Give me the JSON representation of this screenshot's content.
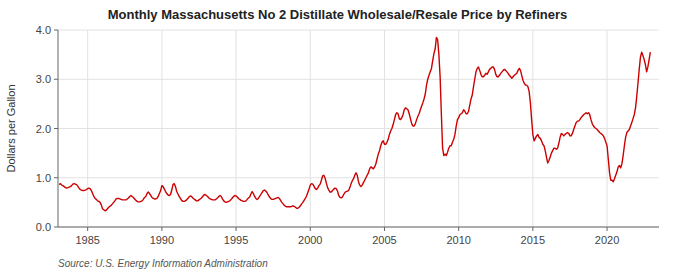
{
  "chart_data": {
    "type": "line",
    "title": "Monthly Massachusetts No 2 Distillate Wholesale/Resale Price by Refiners",
    "ylabel": "Dollars per Gallon",
    "source": "Source: U.S. Energy Information Administration",
    "color": "#cc0000",
    "line_style": "solid",
    "grid": true,
    "xlim": [
      1983.0,
      2023.5
    ],
    "ylim": [
      0.0,
      4.0
    ],
    "xticks": [
      1985,
      1990,
      1995,
      2000,
      2005,
      2010,
      2015,
      2020
    ],
    "yticks": [
      {
        "value": 0.0,
        "label": "0.0"
      },
      {
        "value": 1.0,
        "label": "1.0"
      },
      {
        "value": 2.0,
        "label": "2.0"
      },
      {
        "value": 3.0,
        "label": "3.0"
      },
      {
        "value": 4.0,
        "label": "4.0"
      }
    ],
    "x": [
      1983.083,
      1983.167,
      1983.25,
      1983.333,
      1983.417,
      1983.5,
      1983.583,
      1983.667,
      1983.75,
      1983.833,
      1983.917,
      1984.0,
      1984.083,
      1984.167,
      1984.25,
      1984.333,
      1984.417,
      1984.5,
      1984.583,
      1984.667,
      1984.75,
      1984.833,
      1984.917,
      1985.0,
      1985.083,
      1985.167,
      1985.25,
      1985.333,
      1985.417,
      1985.5,
      1985.583,
      1985.667,
      1985.75,
      1985.833,
      1985.917,
      1986.0,
      1986.083,
      1986.167,
      1986.25,
      1986.333,
      1986.417,
      1986.5,
      1986.583,
      1986.667,
      1986.75,
      1986.833,
      1986.917,
      1987.0,
      1987.083,
      1987.167,
      1987.25,
      1987.333,
      1987.417,
      1987.5,
      1987.583,
      1987.667,
      1987.75,
      1987.833,
      1987.917,
      1988.0,
      1988.083,
      1988.167,
      1988.25,
      1988.333,
      1988.417,
      1988.5,
      1988.583,
      1988.667,
      1988.75,
      1988.833,
      1988.917,
      1989.0,
      1989.083,
      1989.167,
      1989.25,
      1989.333,
      1989.417,
      1989.5,
      1989.583,
      1989.667,
      1989.75,
      1989.833,
      1989.917,
      1990.0,
      1990.083,
      1990.167,
      1990.25,
      1990.333,
      1990.417,
      1990.5,
      1990.583,
      1990.667,
      1990.75,
      1990.833,
      1990.917,
      1991.0,
      1991.083,
      1991.167,
      1991.25,
      1991.333,
      1991.417,
      1991.5,
      1991.583,
      1991.667,
      1991.75,
      1991.833,
      1991.917,
      1992.0,
      1992.083,
      1992.167,
      1992.25,
      1992.333,
      1992.417,
      1992.5,
      1992.583,
      1992.667,
      1992.75,
      1992.833,
      1992.917,
      1993.0,
      1993.083,
      1993.167,
      1993.25,
      1993.333,
      1993.417,
      1993.5,
      1993.583,
      1993.667,
      1993.75,
      1993.833,
      1993.917,
      1994.0,
      1994.083,
      1994.167,
      1994.25,
      1994.333,
      1994.417,
      1994.5,
      1994.583,
      1994.667,
      1994.75,
      1994.833,
      1994.917,
      1995.0,
      1995.083,
      1995.167,
      1995.25,
      1995.333,
      1995.417,
      1995.5,
      1995.583,
      1995.667,
      1995.75,
      1995.833,
      1995.917,
      1996.0,
      1996.083,
      1996.167,
      1996.25,
      1996.333,
      1996.417,
      1996.5,
      1996.583,
      1996.667,
      1996.75,
      1996.833,
      1996.917,
      1997.0,
      1997.083,
      1997.167,
      1997.25,
      1997.333,
      1997.417,
      1997.5,
      1997.583,
      1997.667,
      1997.75,
      1997.833,
      1997.917,
      1998.0,
      1998.083,
      1998.167,
      1998.25,
      1998.333,
      1998.417,
      1998.5,
      1998.583,
      1998.667,
      1998.75,
      1998.833,
      1998.917,
      1999.0,
      1999.083,
      1999.167,
      1999.25,
      1999.333,
      1999.417,
      1999.5,
      1999.583,
      1999.667,
      1999.75,
      1999.833,
      1999.917,
      2000.0,
      2000.083,
      2000.167,
      2000.25,
      2000.333,
      2000.417,
      2000.5,
      2000.583,
      2000.667,
      2000.75,
      2000.833,
      2000.917,
      2001.0,
      2001.083,
      2001.167,
      2001.25,
      2001.333,
      2001.417,
      2001.5,
      2001.583,
      2001.667,
      2001.75,
      2001.833,
      2001.917,
      2002.0,
      2002.083,
      2002.167,
      2002.25,
      2002.333,
      2002.417,
      2002.5,
      2002.583,
      2002.667,
      2002.75,
      2002.833,
      2002.917,
      2003.0,
      2003.083,
      2003.167,
      2003.25,
      2003.333,
      2003.417,
      2003.5,
      2003.583,
      2003.667,
      2003.75,
      2003.833,
      2003.917,
      2004.0,
      2004.083,
      2004.167,
      2004.25,
      2004.333,
      2004.417,
      2004.5,
      2004.583,
      2004.667,
      2004.75,
      2004.833,
      2004.917,
      2005.0,
      2005.083,
      2005.167,
      2005.25,
      2005.333,
      2005.417,
      2005.5,
      2005.583,
      2005.667,
      2005.75,
      2005.833,
      2005.917,
      2006.0,
      2006.083,
      2006.167,
      2006.25,
      2006.333,
      2006.417,
      2006.5,
      2006.583,
      2006.667,
      2006.75,
      2006.833,
      2006.917,
      2007.0,
      2007.083,
      2007.167,
      2007.25,
      2007.333,
      2007.417,
      2007.5,
      2007.583,
      2007.667,
      2007.75,
      2007.833,
      2007.917,
      2008.0,
      2008.083,
      2008.167,
      2008.25,
      2008.333,
      2008.417,
      2008.5,
      2008.583,
      2008.667,
      2008.75,
      2008.833,
      2008.917,
      2009.0,
      2009.083,
      2009.167,
      2009.25,
      2009.333,
      2009.417,
      2009.5,
      2009.583,
      2009.667,
      2009.75,
      2009.833,
      2009.917,
      2010.0,
      2010.083,
      2010.167,
      2010.25,
      2010.333,
      2010.417,
      2010.5,
      2010.583,
      2010.667,
      2010.75,
      2010.833,
      2010.917,
      2011.0,
      2011.083,
      2011.167,
      2011.25,
      2011.333,
      2011.417,
      2011.5,
      2011.583,
      2011.667,
      2011.75,
      2011.833,
      2011.917,
      2012.0,
      2012.083,
      2012.167,
      2012.25,
      2012.333,
      2012.417,
      2012.5,
      2012.583,
      2012.667,
      2012.75,
      2012.833,
      2012.917,
      2013.0,
      2013.083,
      2013.167,
      2013.25,
      2013.333,
      2013.417,
      2013.5,
      2013.583,
      2013.667,
      2013.75,
      2013.833,
      2013.917,
      2014.0,
      2014.083,
      2014.167,
      2014.25,
      2014.333,
      2014.417,
      2014.5,
      2014.583,
      2014.667,
      2014.75,
      2014.833,
      2014.917,
      2015.0,
      2015.083,
      2015.167,
      2015.25,
      2015.333,
      2015.417,
      2015.5,
      2015.583,
      2015.667,
      2015.75,
      2015.833,
      2015.917,
      2016.0,
      2016.083,
      2016.167,
      2016.25,
      2016.333,
      2016.417,
      2016.5,
      2016.583,
      2016.667,
      2016.75,
      2016.833,
      2016.917,
      2017.0,
      2017.083,
      2017.167,
      2017.25,
      2017.333,
      2017.417,
      2017.5,
      2017.583,
      2017.667,
      2017.75,
      2017.833,
      2017.917,
      2018.0,
      2018.083,
      2018.167,
      2018.25,
      2018.333,
      2018.417,
      2018.5,
      2018.583,
      2018.667,
      2018.75,
      2018.833,
      2018.917,
      2019.0,
      2019.083,
      2019.167,
      2019.25,
      2019.333,
      2019.417,
      2019.5,
      2019.583,
      2019.667,
      2019.75,
      2019.833,
      2019.917,
      2020.0,
      2020.083,
      2020.167,
      2020.25,
      2020.333,
      2020.417,
      2020.5,
      2020.583,
      2020.667,
      2020.75,
      2020.833,
      2020.917,
      2021.0,
      2021.083,
      2021.167,
      2021.25,
      2021.333,
      2021.417,
      2021.5,
      2021.583,
      2021.667,
      2021.75,
      2021.833,
      2021.917,
      2022.0,
      2022.083,
      2022.167,
      2022.25,
      2022.333,
      2022.417,
      2022.5,
      2022.583,
      2022.667,
      2022.75,
      2022.833,
      2022.917
    ],
    "values": [
      0.86,
      0.88,
      0.85,
      0.84,
      0.82,
      0.8,
      0.79,
      0.8,
      0.81,
      0.82,
      0.84,
      0.87,
      0.88,
      0.87,
      0.86,
      0.83,
      0.79,
      0.76,
      0.75,
      0.74,
      0.74,
      0.75,
      0.76,
      0.78,
      0.79,
      0.78,
      0.74,
      0.68,
      0.62,
      0.58,
      0.56,
      0.53,
      0.52,
      0.5,
      0.45,
      0.37,
      0.35,
      0.33,
      0.34,
      0.37,
      0.4,
      0.42,
      0.44,
      0.47,
      0.5,
      0.53,
      0.57,
      0.58,
      0.58,
      0.57,
      0.56,
      0.55,
      0.55,
      0.55,
      0.55,
      0.57,
      0.59,
      0.62,
      0.64,
      0.62,
      0.6,
      0.57,
      0.54,
      0.52,
      0.51,
      0.51,
      0.52,
      0.53,
      0.56,
      0.6,
      0.62,
      0.68,
      0.71,
      0.68,
      0.64,
      0.6,
      0.58,
      0.57,
      0.57,
      0.58,
      0.62,
      0.68,
      0.74,
      0.84,
      0.82,
      0.77,
      0.72,
      0.68,
      0.65,
      0.64,
      0.66,
      0.75,
      0.86,
      0.88,
      0.82,
      0.72,
      0.67,
      0.62,
      0.58,
      0.54,
      0.52,
      0.52,
      0.53,
      0.55,
      0.58,
      0.61,
      0.63,
      0.62,
      0.59,
      0.57,
      0.55,
      0.53,
      0.53,
      0.55,
      0.57,
      0.59,
      0.62,
      0.65,
      0.66,
      0.64,
      0.62,
      0.59,
      0.57,
      0.56,
      0.55,
      0.55,
      0.55,
      0.57,
      0.59,
      0.62,
      0.64,
      0.62,
      0.57,
      0.53,
      0.51,
      0.5,
      0.51,
      0.52,
      0.53,
      0.56,
      0.59,
      0.62,
      0.64,
      0.63,
      0.61,
      0.58,
      0.56,
      0.54,
      0.53,
      0.52,
      0.52,
      0.53,
      0.56,
      0.59,
      0.61,
      0.67,
      0.72,
      0.68,
      0.62,
      0.58,
      0.56,
      0.58,
      0.62,
      0.66,
      0.7,
      0.74,
      0.75,
      0.73,
      0.7,
      0.65,
      0.61,
      0.58,
      0.56,
      0.56,
      0.57,
      0.58,
      0.59,
      0.6,
      0.58,
      0.54,
      0.5,
      0.47,
      0.44,
      0.42,
      0.41,
      0.41,
      0.41,
      0.41,
      0.42,
      0.43,
      0.42,
      0.4,
      0.38,
      0.38,
      0.4,
      0.43,
      0.47,
      0.5,
      0.54,
      0.58,
      0.63,
      0.7,
      0.77,
      0.85,
      0.88,
      0.87,
      0.83,
      0.78,
      0.76,
      0.79,
      0.84,
      0.87,
      0.95,
      1.04,
      1.05,
      0.99,
      0.89,
      0.8,
      0.75,
      0.71,
      0.71,
      0.74,
      0.77,
      0.79,
      0.78,
      0.73,
      0.64,
      0.6,
      0.59,
      0.61,
      0.66,
      0.7,
      0.72,
      0.73,
      0.74,
      0.8,
      0.88,
      0.94,
      0.98,
      1.05,
      1.1,
      1.05,
      0.92,
      0.85,
      0.82,
      0.85,
      0.9,
      0.95,
      1.0,
      1.05,
      1.1,
      1.18,
      1.22,
      1.2,
      1.18,
      1.22,
      1.28,
      1.38,
      1.48,
      1.55,
      1.65,
      1.72,
      1.75,
      1.68,
      1.68,
      1.72,
      1.78,
      1.88,
      1.95,
      2.0,
      2.08,
      2.18,
      2.28,
      2.32,
      2.3,
      2.2,
      2.18,
      2.22,
      2.28,
      2.38,
      2.42,
      2.4,
      2.38,
      2.3,
      2.2,
      2.1,
      2.05,
      2.05,
      2.1,
      2.18,
      2.25,
      2.3,
      2.38,
      2.45,
      2.52,
      2.6,
      2.7,
      2.88,
      3.0,
      3.08,
      3.15,
      3.22,
      3.38,
      3.52,
      3.62,
      3.85,
      3.8,
      3.5,
      3.05,
      2.3,
      1.6,
      1.45,
      1.48,
      1.45,
      1.52,
      1.6,
      1.65,
      1.65,
      1.72,
      1.78,
      1.88,
      2.05,
      2.18,
      2.22,
      2.28,
      2.3,
      2.32,
      2.38,
      2.35,
      2.3,
      2.3,
      2.35,
      2.48,
      2.6,
      2.68,
      2.85,
      3.0,
      3.15,
      3.22,
      3.25,
      3.18,
      3.1,
      3.05,
      3.05,
      3.08,
      3.12,
      3.1,
      3.15,
      3.2,
      3.22,
      3.25,
      3.25,
      3.2,
      3.1,
      3.05,
      3.05,
      3.08,
      3.12,
      3.15,
      3.18,
      3.2,
      3.18,
      3.15,
      3.12,
      3.08,
      3.05,
      3.02,
      3.05,
      3.08,
      3.1,
      3.12,
      3.18,
      3.22,
      3.18,
      3.08,
      2.98,
      2.92,
      2.88,
      2.88,
      2.85,
      2.75,
      2.52,
      2.18,
      1.88,
      1.75,
      1.8,
      1.85,
      1.88,
      1.82,
      1.8,
      1.75,
      1.68,
      1.65,
      1.55,
      1.42,
      1.3,
      1.35,
      1.42,
      1.5,
      1.55,
      1.6,
      1.6,
      1.58,
      1.6,
      1.7,
      1.82,
      1.9,
      1.88,
      1.85,
      1.88,
      1.9,
      1.92,
      1.9,
      1.85,
      1.85,
      1.9,
      1.98,
      2.05,
      2.12,
      2.15,
      2.15,
      2.18,
      2.22,
      2.25,
      2.28,
      2.3,
      2.32,
      2.3,
      2.32,
      2.28,
      2.18,
      2.1,
      2.05,
      2.02,
      2.0,
      1.98,
      1.95,
      1.92,
      1.9,
      1.88,
      1.85,
      1.8,
      1.72,
      1.65,
      1.38,
      1.1,
      0.95,
      0.95,
      0.92,
      0.98,
      1.05,
      1.12,
      1.22,
      1.25,
      1.2,
      1.28,
      1.45,
      1.65,
      1.82,
      1.92,
      1.95,
      1.98,
      2.05,
      2.12,
      2.2,
      2.28,
      2.42,
      2.65,
      2.92,
      3.2,
      3.45,
      3.55,
      3.48,
      3.4,
      3.3,
      3.15,
      3.25,
      3.4,
      3.55
    ]
  }
}
